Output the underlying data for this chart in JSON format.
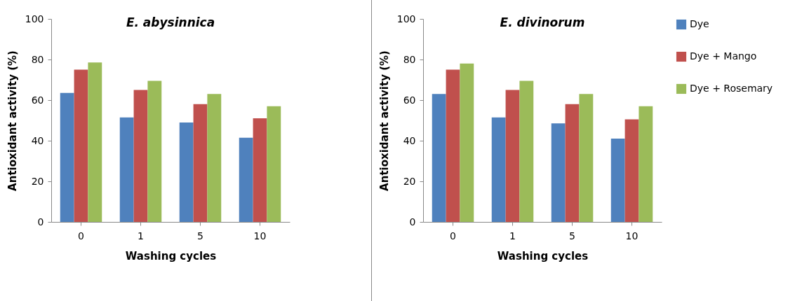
{
  "chart_data": [
    {
      "type": "bar",
      "title": "E. abysinnica",
      "xlabel": "Washing cycles",
      "ylabel": "Antioxidant activity  (%)",
      "categories": [
        "0",
        "1",
        "5",
        "10"
      ],
      "series": [
        {
          "color": "#4f81bd",
          "values": [
            63.5,
            51.5,
            49,
            41.5
          ]
        },
        {
          "color": "#c0504d",
          "values": [
            75,
            65,
            58,
            51
          ]
        },
        {
          "color": "#9bbb59",
          "values": [
            78.5,
            69.5,
            63,
            57
          ]
        }
      ],
      "ylim": [
        0,
        100
      ],
      "yticks": [
        0,
        20,
        40,
        60,
        80,
        100
      ],
      "grid": false,
      "legend": false
    },
    {
      "type": "bar",
      "title": "E. divinorum",
      "xlabel": "Washing cycles",
      "ylabel": "Antioxidant activity  (%)",
      "categories": [
        "0",
        "1",
        "5",
        "10"
      ],
      "series": [
        {
          "name": "Dye",
          "color": "#4f81bd",
          "values": [
            63,
            51.5,
            48.5,
            41
          ]
        },
        {
          "name": "Dye + Mango",
          "color": "#c0504d",
          "values": [
            75,
            65,
            58,
            50.5
          ]
        },
        {
          "name": "Dye + Rosemary",
          "color": "#9bbb59",
          "values": [
            78,
            69.5,
            63,
            57
          ]
        }
      ],
      "ylim": [
        0,
        100
      ],
      "yticks": [
        0,
        20,
        40,
        60,
        80,
        100
      ],
      "grid": false,
      "legend": "right"
    }
  ]
}
